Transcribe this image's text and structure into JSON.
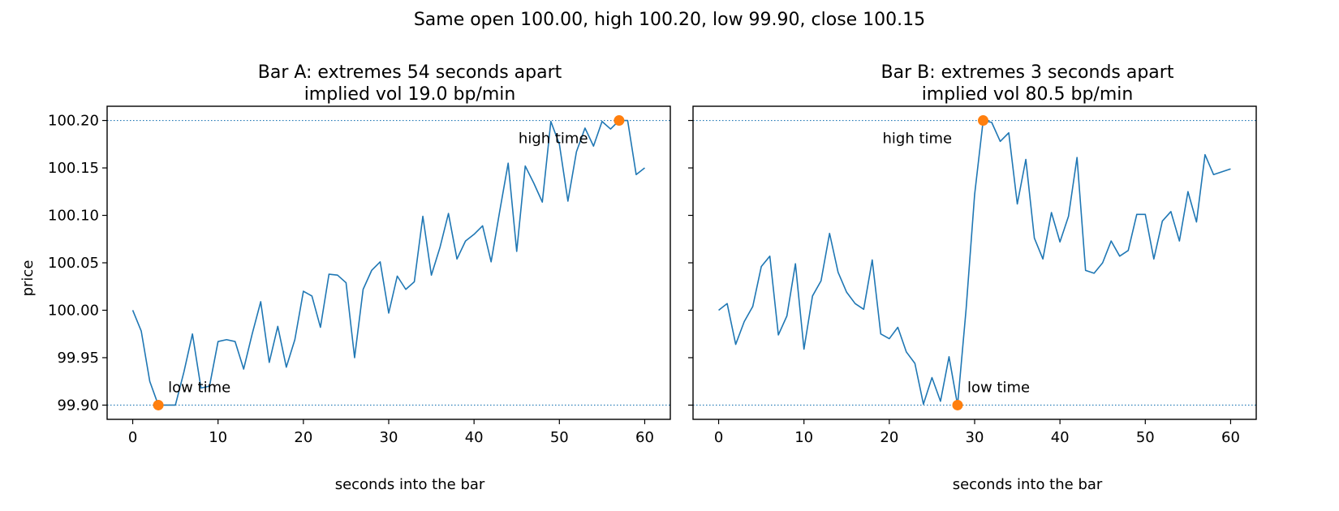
{
  "suptitle": "Same open 100.00, high 100.20, low 99.90, close 100.15",
  "colors": {
    "line": "#1f77b4",
    "marker": "#ff7f0e",
    "refline": "#1f77b4"
  },
  "chart_data": [
    {
      "type": "line",
      "title_line1": "Bar A: extremes 54 seconds apart",
      "title_line2": "implied vol 19.0 bp/min",
      "xlabel": "seconds into the bar",
      "ylabel": "price",
      "xlim": [
        -3,
        63
      ],
      "ylim": [
        99.885,
        100.215
      ],
      "xticks": [
        0,
        10,
        20,
        30,
        40,
        50,
        60
      ],
      "yticks": [
        "99.90",
        "99.95",
        "100.00",
        "100.05",
        "100.10",
        "100.15",
        "100.20"
      ],
      "ref_lines": [
        100.2,
        99.9
      ],
      "series": [
        {
          "x": [
            0,
            1,
            2,
            3,
            4,
            5,
            6,
            7,
            8,
            9,
            10,
            11,
            12,
            13,
            14,
            15,
            16,
            17,
            18,
            19,
            20,
            21,
            22,
            23,
            24,
            25,
            26,
            27,
            28,
            29,
            30,
            31,
            32,
            33,
            34,
            35,
            36,
            37,
            38,
            39,
            40,
            41,
            42,
            43,
            44,
            45,
            46,
            47,
            48,
            49,
            50,
            51,
            52,
            53,
            54,
            55,
            56,
            57,
            58,
            59,
            60
          ],
          "y": [
            100.0,
            99.978,
            99.925,
            99.9,
            99.9,
            99.9,
            99.935,
            99.975,
            99.918,
            99.92,
            99.967,
            99.969,
            99.967,
            99.938,
            99.975,
            100.009,
            99.945,
            99.983,
            99.94,
            99.969,
            100.02,
            100.015,
            99.982,
            100.038,
            100.037,
            100.029,
            99.95,
            100.022,
            100.042,
            100.051,
            99.997,
            100.036,
            100.022,
            100.03,
            100.099,
            100.037,
            100.066,
            100.102,
            100.054,
            100.073,
            100.08,
            100.089,
            100.051,
            100.104,
            100.155,
            100.062,
            100.152,
            100.134,
            100.114,
            100.199,
            100.175,
            100.115,
            100.167,
            100.192,
            100.173,
            100.199,
            100.191,
            100.2,
            100.2,
            100.143,
            100.15
          ]
        }
      ],
      "markers": [
        {
          "label": "low time",
          "x": 3,
          "y": 99.9
        },
        {
          "label": "high time",
          "x": 57,
          "y": 100.2
        }
      ]
    },
    {
      "type": "line",
      "title_line1": "Bar B: extremes 3 seconds apart",
      "title_line2": "implied vol 80.5 bp/min",
      "xlabel": "seconds into the bar",
      "ylabel": "",
      "xlim": [
        -3,
        63
      ],
      "ylim": [
        99.885,
        100.215
      ],
      "xticks": [
        0,
        10,
        20,
        30,
        40,
        50,
        60
      ],
      "yticks": [],
      "ref_lines": [
        100.2,
        99.9
      ],
      "series": [
        {
          "x": [
            0,
            1,
            2,
            3,
            4,
            5,
            6,
            7,
            8,
            9,
            10,
            11,
            12,
            13,
            14,
            15,
            16,
            17,
            18,
            19,
            20,
            21,
            22,
            23,
            24,
            25,
            26,
            27,
            28,
            29,
            30,
            31,
            32,
            33,
            34,
            35,
            36,
            37,
            38,
            39,
            40,
            41,
            42,
            43,
            44,
            45,
            46,
            47,
            48,
            49,
            50,
            51,
            52,
            53,
            54,
            55,
            56,
            57,
            58,
            59,
            60
          ],
          "y": [
            100.0,
            100.007,
            99.964,
            99.988,
            100.004,
            100.046,
            100.057,
            99.974,
            99.994,
            100.049,
            99.959,
            100.015,
            100.031,
            100.081,
            100.04,
            100.019,
            100.007,
            100.001,
            100.053,
            99.975,
            99.97,
            99.982,
            99.956,
            99.944,
            99.901,
            99.929,
            99.904,
            99.951,
            99.9,
            100.001,
            100.122,
            100.2,
            100.198,
            100.178,
            100.187,
            100.112,
            100.159,
            100.076,
            100.054,
            100.103,
            100.072,
            100.099,
            100.161,
            100.042,
            100.039,
            100.05,
            100.073,
            100.057,
            100.063,
            100.101,
            100.101,
            100.054,
            100.094,
            100.104,
            100.073,
            100.125,
            100.093,
            100.164,
            100.143,
            100.146,
            100.149
          ]
        }
      ],
      "markers": [
        {
          "label": "low time",
          "x": 28,
          "y": 99.9
        },
        {
          "label": "high time",
          "x": 31,
          "y": 100.2
        }
      ]
    }
  ]
}
